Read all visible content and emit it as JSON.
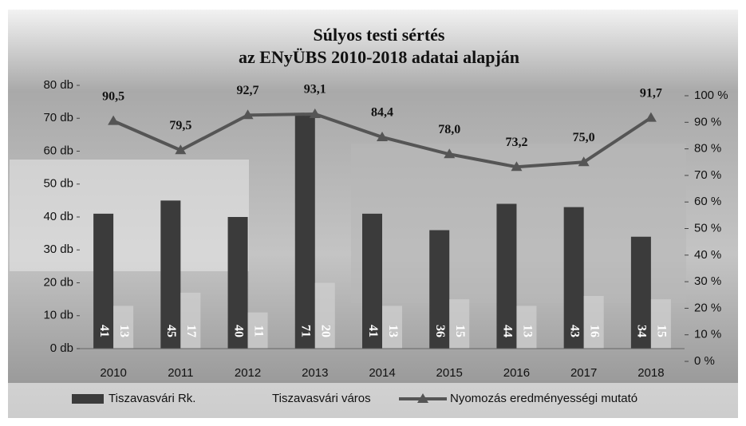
{
  "chart_data": {
    "type": "bar-line",
    "title": [
      "Súlyos testi sértés",
      "az ENyÜBS 2010-2018 adatai alapján"
    ],
    "categories": [
      "2010",
      "2011",
      "2012",
      "2013",
      "2014",
      "2015",
      "2016",
      "2017",
      "2018"
    ],
    "series": [
      {
        "name": "Tiszavasvári Rk.",
        "type": "bar",
        "color": "#3b3b3b",
        "values": [
          41,
          45,
          40,
          71,
          41,
          36,
          44,
          43,
          34
        ]
      },
      {
        "name": "Tiszavasvári város",
        "type": "bar",
        "color": "#cfcfcf",
        "values": [
          13,
          17,
          11,
          20,
          13,
          15,
          13,
          16,
          15
        ]
      },
      {
        "name": "Nyomozás eredményességi mutató",
        "type": "line",
        "axis": "y2",
        "color": "#555555",
        "values": [
          90.5,
          79.5,
          92.7,
          93.1,
          84.4,
          78.0,
          73.2,
          75.0,
          91.7
        ],
        "value_labels": [
          "90,5",
          "79,5",
          "92,7",
          "93,1",
          "84,4",
          "78,0",
          "73,2",
          "75,0",
          "91,7"
        ]
      }
    ],
    "ylim": [
      0,
      80
    ],
    "yticks": [
      {
        "value": 0,
        "label": "0 db"
      },
      {
        "value": 10,
        "label": "10 db"
      },
      {
        "value": 20,
        "label": "20 db"
      },
      {
        "value": 30,
        "label": "30 db"
      },
      {
        "value": 40,
        "label": "40 db"
      },
      {
        "value": 50,
        "label": "50 db"
      },
      {
        "value": 60,
        "label": "60 db"
      },
      {
        "value": 70,
        "label": "70 db"
      },
      {
        "value": 80,
        "label": "80 db"
      }
    ],
    "y2lim": [
      0,
      100
    ],
    "y2ticks": [
      {
        "value": 0,
        "label": "0 %"
      },
      {
        "value": 10,
        "label": "10 %"
      },
      {
        "value": 20,
        "label": "20 %"
      },
      {
        "value": 30,
        "label": "30 %"
      },
      {
        "value": 40,
        "label": "40 %"
      },
      {
        "value": 50,
        "label": "50 %"
      },
      {
        "value": 60,
        "label": "60 %"
      },
      {
        "value": 70,
        "label": "70 %"
      },
      {
        "value": 80,
        "label": "80 %"
      },
      {
        "value": 90,
        "label": "90 %"
      },
      {
        "value": 100,
        "label": "100 %"
      }
    ],
    "legend": "bottom"
  }
}
